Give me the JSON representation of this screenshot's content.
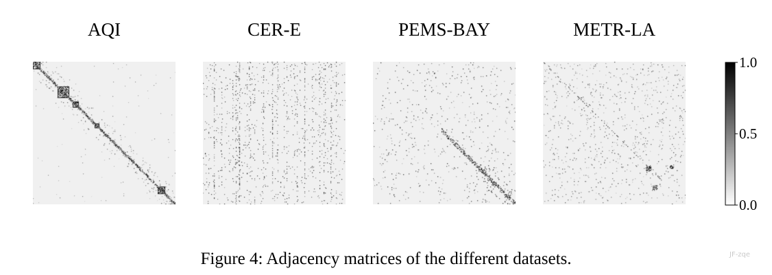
{
  "figure": {
    "caption": "Figure 4: Adjacency matrices of the different datasets.",
    "watermark": "JF-zqe"
  },
  "chart_data": [
    {
      "type": "heatmap",
      "title": "AQI",
      "matrix_structure": "block-diagonal",
      "value_range": [
        0.0,
        1.0
      ],
      "background_value": 0.0
    },
    {
      "type": "heatmap",
      "title": "CER-E",
      "matrix_structure": "scattered",
      "value_range": [
        0.0,
        1.0
      ],
      "background_value": 0.0
    },
    {
      "type": "heatmap",
      "title": "PEMS-BAY",
      "matrix_structure": "sparse with diagonal in lower half",
      "value_range": [
        0.0,
        1.0
      ],
      "background_value": 0.0
    },
    {
      "type": "heatmap",
      "title": "METR-LA",
      "matrix_structure": "scattered with blocks in lower-right",
      "value_range": [
        0.0,
        1.0
      ],
      "background_value": 0.0
    }
  ],
  "colorbar": {
    "min": 0.0,
    "max": 1.0,
    "ticks": [
      {
        "value": 1.0,
        "label": "1.0"
      },
      {
        "value": 0.5,
        "label": "0.5"
      },
      {
        "value": 0.0,
        "label": "0.0"
      }
    ],
    "low_color": "#ffffff",
    "high_color": "#000000"
  },
  "colors": {
    "matrix_background": "#f0f0f0",
    "text": "#000000"
  }
}
